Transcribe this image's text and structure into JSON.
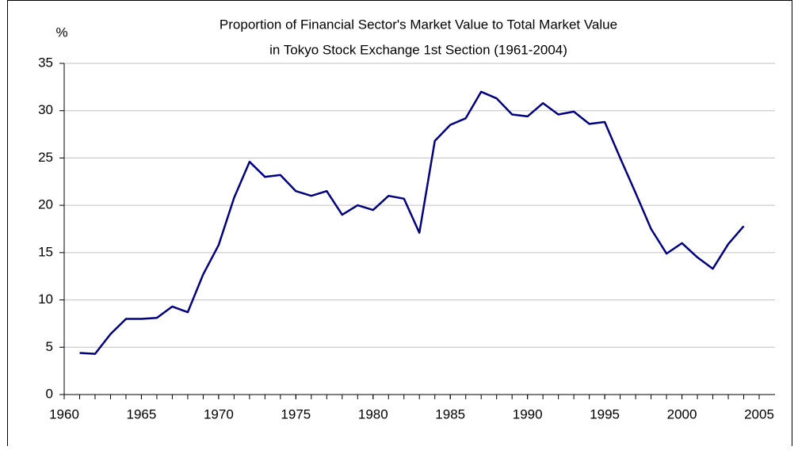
{
  "chart_data": {
    "type": "line",
    "title": [
      "Proportion of Financial Sector's Market Value to Total Market Value",
      "in Tokyo Stock Exchange 1st Section (1961-2004)"
    ],
    "y_label": "%",
    "series": [
      {
        "color": "#000080",
        "x": [
          1961,
          1962,
          1963,
          1964,
          1965,
          1966,
          1967,
          1968,
          1969,
          1970,
          1971,
          1972,
          1973,
          1974,
          1975,
          1976,
          1977,
          1978,
          1979,
          1980,
          1981,
          1982,
          1983,
          1984,
          1985,
          1986,
          1987,
          1988,
          1989,
          1990,
          1991,
          1992,
          1993,
          1994,
          1995,
          1996,
          1997,
          1998,
          1999,
          2000,
          2001,
          2002,
          2003,
          2004
        ],
        "values": [
          4.4,
          4.3,
          6.4,
          8.0,
          8.0,
          8.1,
          9.3,
          8.7,
          12.7,
          15.8,
          20.8,
          24.6,
          23.0,
          23.2,
          21.5,
          21.0,
          21.5,
          19.0,
          20.0,
          19.5,
          21.0,
          20.7,
          17.1,
          26.8,
          28.5,
          29.2,
          32.0,
          31.3,
          29.6,
          29.4,
          30.8,
          29.6,
          29.9,
          28.6,
          28.8,
          25.0,
          21.3,
          17.5,
          14.9,
          16.0,
          14.5,
          13.3,
          15.9,
          17.8
        ]
      }
    ],
    "xlim": [
      1960,
      2005
    ],
    "xticks": [
      1960,
      1965,
      1970,
      1975,
      1980,
      1985,
      1990,
      1995,
      2000,
      2005
    ],
    "ylim": [
      0,
      35
    ],
    "yticks": [
      0,
      5,
      10,
      15,
      20,
      25,
      30,
      35
    ],
    "grid": true
  }
}
